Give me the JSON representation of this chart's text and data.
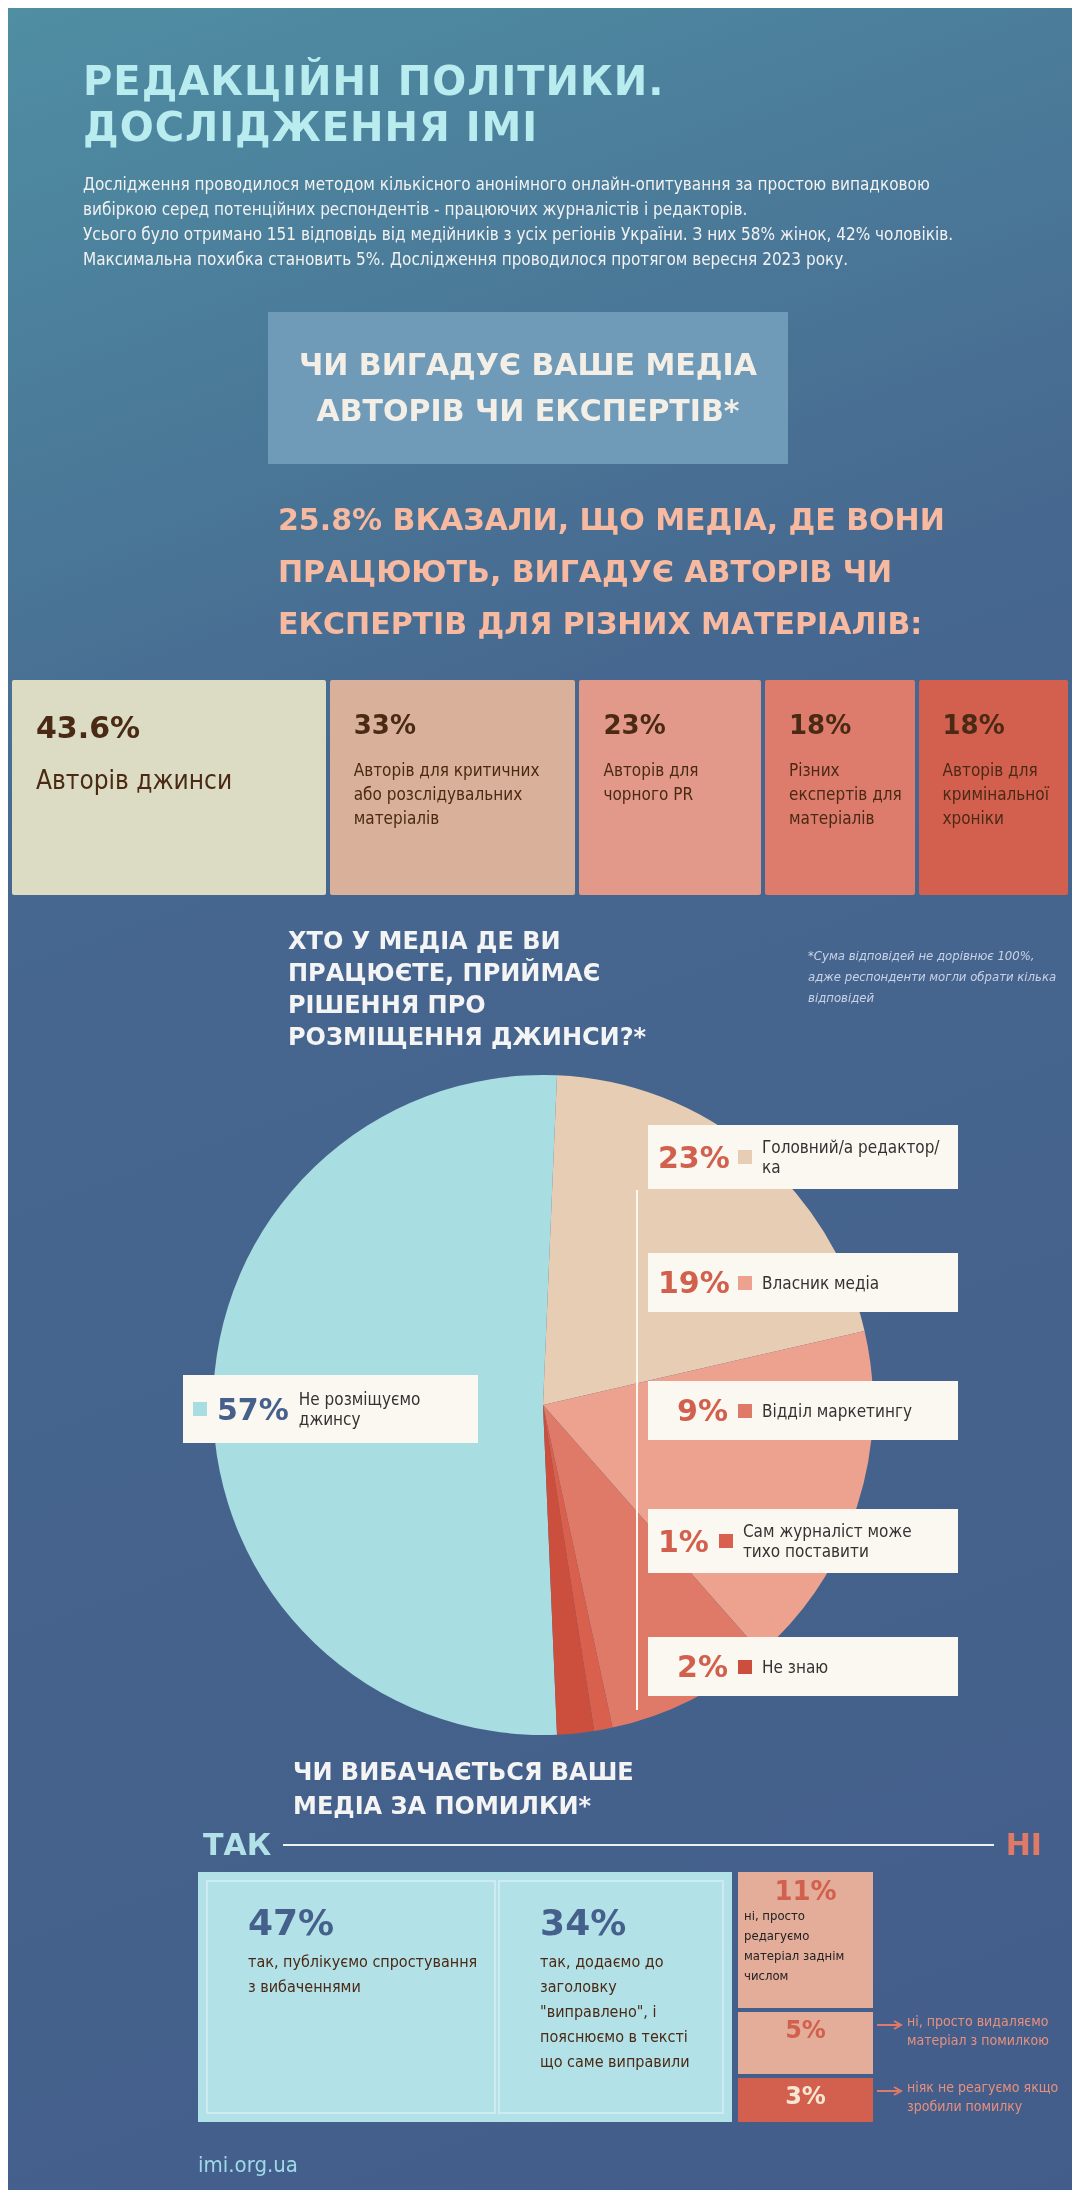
{
  "chart_data": [
    {
      "type": "other",
      "title": "РЕДАКЦІЙНІ ПОЛІТИКИ. ДОСЛІДЖЕННЯ ІМІ",
      "subtitle": "Дослідження проводилося методом кількісного анонімного онлайн-опитування за простою випадковою вибіркою серед потенційних респондентів - працюючих журналістів і редакторів.\nУсього було отримано 151 відповідь від медійників з усіх регіонів України. З них 58% жінок, 42% чоловіків.\nМаксимальна похибка становить 5%. Дослідження проводилося протягом вересня 2023 року."
    },
    {
      "type": "other",
      "title": "ЧИ ВИГАДУЄ ВАШЕ МЕДІА АВТОРІВ ЧИ ЕКСПЕРТІВ*",
      "subtitle": "25.8% ВКАЗАЛИ, ЩО МЕДІА, ДЕ ВОНИ ПРАЦЮЮТЬ, ВИГАДУЄ АВТОРІВ ЧИ ЕКСПЕРТІВ ДЛЯ РІЗНИХ МАТЕРІАЛІВ:",
      "categories": [
        "Авторів джинси",
        "Авторів для критичних або розслідувальних матеріалів",
        "Авторів для чорного PR",
        "Різних експертів для матеріалів",
        "Авторів для кримінальної хроніки"
      ],
      "values": [
        43.6,
        33,
        23,
        18,
        18
      ],
      "value_labels": [
        "43.6%",
        "33%",
        "23%",
        "18%",
        "18%"
      ],
      "colors": [
        "#dcdcc4",
        "#d9b09a",
        "#e2998a",
        "#dd7b6c",
        "#d3604f"
      ]
    },
    {
      "type": "pie",
      "title": "ХТО У МЕДІА ДЕ ВИ ПРАЦЮЄТЕ, ПРИЙМАЄ РІШЕННЯ ПРО РОЗМІЩЕННЯ ДЖИНСИ?*",
      "categories": [
        "Не розміщуємо джинсу",
        "Головний/а редактор/ка",
        "Власник медіа",
        "Відділ маркетингу",
        "Сам журналіст може тихо поставити",
        "Не знаю"
      ],
      "values": [
        57,
        23,
        19,
        9,
        1,
        2
      ],
      "value_labels": [
        "57%",
        "23%",
        "19%",
        "9%",
        "1%",
        "2%"
      ],
      "colors": [
        "#a8dde2",
        "#e8cdb5",
        "#eca28e",
        "#e07a68",
        "#d9604c",
        "#cc4f3e"
      ],
      "legend": "right",
      "annotations": [
        "*Сума відповідей не дорівнює 100%, адже респонденти могли обрати кілька відповідей"
      ]
    },
    {
      "type": "other",
      "title": "ЧИ ВИБАЧАЄТЬСЯ ВАШЕ МЕДІА ЗА ПОМИЛКИ*",
      "categories": [
        "так, публікуємо спростування з вибаченнями",
        "так, додаємо до заголовку \"виправлено\", і пояснюємо в тексті що саме виправили",
        "ні, просто редагуємо матеріал заднім числом",
        "ні, просто видаляємо матеріал з помилкою",
        "ніяк не реагуємо якщо зробили помилку"
      ],
      "values": [
        47,
        34,
        11,
        5,
        3
      ],
      "value_labels": [
        "47%",
        "34%",
        "11%",
        "5%",
        "3%"
      ],
      "colors": [
        "#b3e1e8",
        "#b3e1e8",
        "#e3ad9a",
        "#e3ad9a",
        "#d3604f"
      ],
      "annotations": [
        "ТАК",
        "НІ",
        "imi.org.ua"
      ]
    }
  ]
}
